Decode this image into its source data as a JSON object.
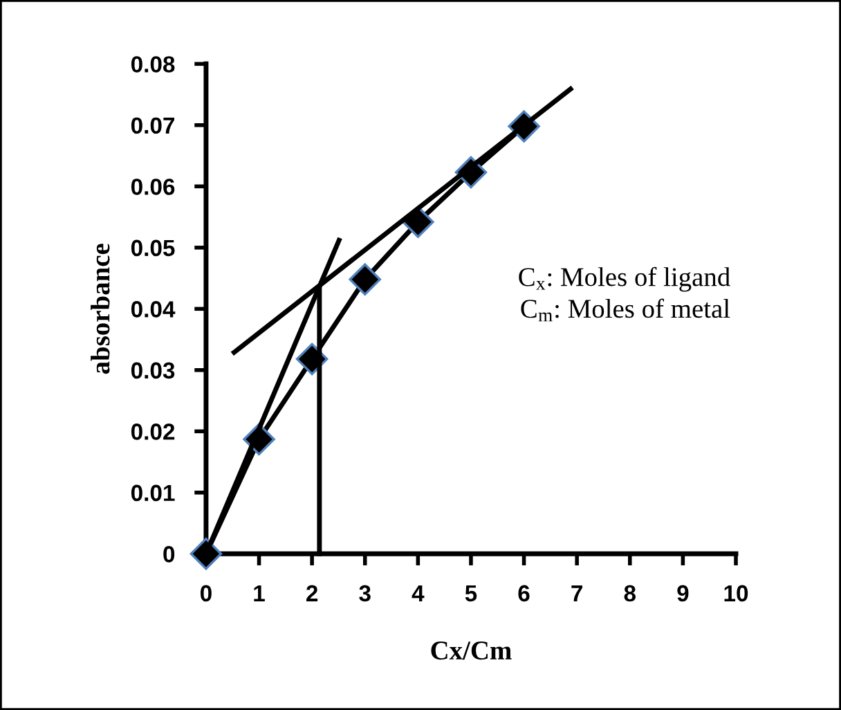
{
  "chart_data": {
    "type": "line",
    "xlabel": "Cx/Cm",
    "ylabel": "absorbance",
    "xlim": [
      0,
      10
    ],
    "xticks": [
      0,
      1,
      2,
      3,
      4,
      5,
      6,
      7,
      8,
      9,
      10
    ],
    "ylim": [
      0,
      0.08
    ],
    "yticks": [
      0,
      0.01,
      0.02,
      0.03,
      0.04,
      0.05,
      0.06,
      0.07,
      0.08
    ],
    "grid": false,
    "legend": false,
    "series": [
      {
        "color": "#000000",
        "marker": "diamond",
        "x": [
          0,
          1,
          2,
          3,
          4,
          5,
          6
        ],
        "values": [
          0,
          0.0187,
          0.0318,
          0.0448,
          0.0542,
          0.0623,
          0.0698
        ]
      },
      {
        "color": "#000000",
        "marker": "none",
        "x": [
          0,
          2.51
        ],
        "values": [
          0,
          0.0512
        ]
      },
      {
        "color": "#000000",
        "marker": "none",
        "x": [
          0.53,
          6.88
        ],
        "values": [
          0.0329,
          0.0759
        ]
      },
      {
        "color": "#000000",
        "marker": "none",
        "x": [
          2.14,
          2.14
        ],
        "values": [
          0,
          0.0433
        ]
      }
    ],
    "annotations": [
      "C$_{x}$: Moles of ligand",
      "C$_{m}$: Moles of metal"
    ]
  }
}
